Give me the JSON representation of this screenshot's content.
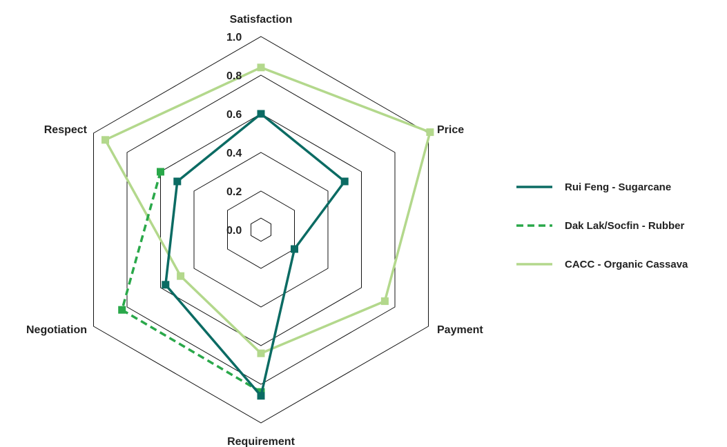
{
  "chart_data": {
    "type": "radar",
    "axes": [
      "Satisfaction",
      "Price",
      "Payment",
      "Requirement",
      "Negotiation",
      "Respect"
    ],
    "rlim": [
      0.0,
      1.0
    ],
    "ticks": [
      "0.0",
      "0.2",
      "0.4",
      "0.6",
      "0.8",
      "1.0"
    ],
    "tick_values": [
      0.0,
      0.2,
      0.4,
      0.6,
      0.8,
      1.0
    ],
    "grid": true,
    "legend_position": "right",
    "series": [
      {
        "name": "Rui Feng - Sugarcane",
        "color": "#0b6b63",
        "style": "solid",
        "values": [
          0.6,
          0.5,
          0.2,
          0.86,
          0.57,
          0.5
        ]
      },
      {
        "name": "Dak Lak/Socfin - Rubber",
        "color": "#2aa84a",
        "style": "dashed",
        "values": [
          null,
          null,
          null,
          0.84,
          0.83,
          0.6
        ]
      },
      {
        "name": "CACC - Organic Cassava",
        "color": "#b3d88c",
        "style": "solid",
        "values": [
          0.84,
          1.01,
          0.74,
          0.64,
          0.48,
          0.93
        ]
      }
    ]
  }
}
